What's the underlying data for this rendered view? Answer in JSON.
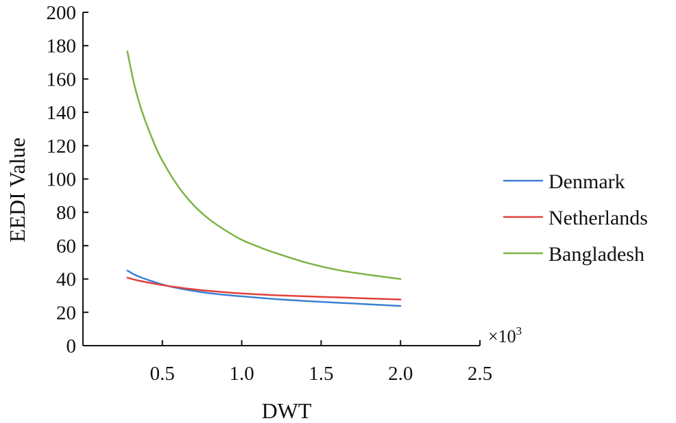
{
  "chart_data": {
    "type": "line",
    "title": "",
    "xlabel": "DWT",
    "ylabel": "EEDI Value",
    "x_multiplier": "×10",
    "x_multiplier_exp": "3",
    "xlim": [
      0,
      2.5
    ],
    "ylim": [
      0,
      200
    ],
    "xticks": [
      0.5,
      1.0,
      1.5,
      2.0,
      2.5
    ],
    "xtick_labels": [
      "0.5",
      "1.0",
      "1.5",
      "2.0",
      "2.5"
    ],
    "yticks": [
      0,
      20,
      40,
      60,
      80,
      100,
      120,
      140,
      160,
      180,
      200
    ],
    "ytick_labels": [
      "0",
      "20",
      "40",
      "60",
      "80",
      "100",
      "120",
      "140",
      "160",
      "180",
      "200"
    ],
    "grid": false,
    "legend_position": "right",
    "series": [
      {
        "name": "Denmark",
        "color": "#3a7fd5",
        "x": [
          0.28,
          0.35,
          0.45,
          0.55,
          0.7,
          0.85,
          1.0,
          1.2,
          1.4,
          1.6,
          1.8,
          2.0
        ],
        "y": [
          45,
          41.5,
          38.2,
          35.5,
          32.8,
          30.9,
          29.6,
          28.0,
          26.8,
          25.8,
          24.8,
          23.8
        ]
      },
      {
        "name": "Netherlands",
        "color": "#e0403a",
        "x": [
          0.28,
          0.35,
          0.45,
          0.55,
          0.7,
          0.85,
          1.0,
          1.2,
          1.4,
          1.6,
          1.8,
          2.0
        ],
        "y": [
          40.8,
          39.0,
          37.2,
          35.6,
          33.8,
          32.4,
          31.3,
          30.3,
          29.6,
          29.0,
          28.3,
          27.7
        ]
      },
      {
        "name": "Bangladesh",
        "color": "#7cb342",
        "x": [
          0.28,
          0.32,
          0.36,
          0.4,
          0.45,
          0.5,
          0.6,
          0.7,
          0.8,
          0.9,
          1.0,
          1.1,
          1.2,
          1.4,
          1.6,
          1.8,
          2.0
        ],
        "y": [
          176.5,
          158,
          144,
          133,
          121,
          111,
          95.5,
          84,
          75.5,
          69,
          63.5,
          59.5,
          56,
          50,
          45.5,
          42.5,
          40
        ]
      }
    ]
  }
}
